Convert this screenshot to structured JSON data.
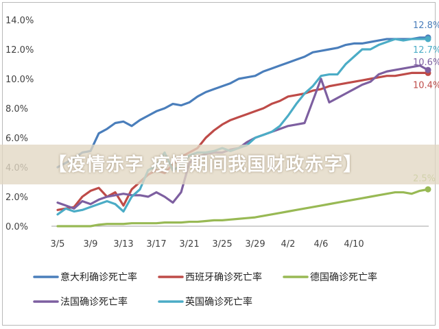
{
  "banner": {
    "text": "【疫情赤字 疫情期间我国财政赤字】"
  },
  "chart_data": {
    "type": "line",
    "ylim": [
      0,
      14
    ],
    "y_ticks": [
      "0.0%",
      "2.0%",
      "4.0%",
      "6.0%",
      "8.0%",
      "10.0%",
      "12.0%",
      "14.0%"
    ],
    "x_ticks": [
      "3/5",
      "3/9",
      "3/13",
      "3/17",
      "3/21",
      "3/25",
      "3/29",
      "4/2",
      "4/6",
      "4/10"
    ],
    "legend_position": "bottom",
    "series": [
      {
        "name": "意大利确诊死亡率",
        "color": "#4a7ebb",
        "end_label": "12.8%",
        "values": [
          4.0,
          4.3,
          4.6,
          5.0,
          5.1,
          6.3,
          6.6,
          7.0,
          7.1,
          6.8,
          7.2,
          7.5,
          7.8,
          8.0,
          8.3,
          8.2,
          8.4,
          8.8,
          9.1,
          9.3,
          9.5,
          9.7,
          10.0,
          10.1,
          10.2,
          10.5,
          10.7,
          10.9,
          11.1,
          11.3,
          11.5,
          11.8,
          11.9,
          12.0,
          12.1,
          12.3,
          12.4,
          12.4,
          12.5,
          12.6,
          12.7,
          12.7,
          12.7,
          12.7,
          12.8,
          12.8
        ]
      },
      {
        "name": "西班牙确诊死亡率",
        "color": "#be4b48",
        "end_label": "10.4%",
        "values": [
          1.1,
          1.2,
          1.3,
          2.0,
          2.4,
          2.6,
          2.0,
          2.3,
          1.4,
          2.5,
          3.0,
          3.5,
          3.8,
          3.6,
          4.2,
          4.7,
          5.0,
          5.3,
          6.0,
          6.5,
          6.9,
          7.2,
          7.4,
          7.6,
          7.8,
          8.0,
          8.3,
          8.5,
          8.8,
          8.9,
          9.0,
          9.2,
          9.3,
          9.5,
          9.6,
          9.7,
          9.8,
          9.9,
          10.0,
          10.1,
          10.2,
          10.2,
          10.3,
          10.4,
          10.4,
          10.4
        ]
      },
      {
        "name": "德国确诊死亡率",
        "color": "#98b954",
        "end_label": "2.5%",
        "values": [
          0.0,
          0.0,
          0.0,
          0.0,
          0.0,
          0.1,
          0.15,
          0.15,
          0.15,
          0.2,
          0.2,
          0.2,
          0.2,
          0.25,
          0.25,
          0.25,
          0.3,
          0.3,
          0.35,
          0.4,
          0.4,
          0.45,
          0.5,
          0.55,
          0.6,
          0.7,
          0.8,
          0.9,
          1.0,
          1.1,
          1.2,
          1.3,
          1.4,
          1.5,
          1.6,
          1.7,
          1.8,
          1.9,
          2.0,
          2.1,
          2.2,
          2.3,
          2.3,
          2.2,
          2.4,
          2.5
        ]
      },
      {
        "name": "法国确诊死亡率",
        "color": "#7d5fa0",
        "end_label": "10.6%",
        "values": [
          1.6,
          1.4,
          1.2,
          1.7,
          1.5,
          1.8,
          2.0,
          2.1,
          2.2,
          2.1,
          2.1,
          2.0,
          2.3,
          2.0,
          1.6,
          2.3,
          4.3,
          4.7,
          4.9,
          5.0,
          5.0,
          5.2,
          5.3,
          5.7,
          6.0,
          6.2,
          6.4,
          6.6,
          6.8,
          6.9,
          7.0,
          8.5,
          10.0,
          8.4,
          8.7,
          9.0,
          9.3,
          9.6,
          9.8,
          10.3,
          10.5,
          10.6,
          10.7,
          10.8,
          10.9,
          10.6
        ]
      },
      {
        "name": "英国确诊死亡率",
        "color": "#4bacc6",
        "end_label": "12.7%",
        "values": [
          0.8,
          1.2,
          1.0,
          1.1,
          1.3,
          1.5,
          1.7,
          1.5,
          1.0,
          2.0,
          2.5,
          3.8,
          4.1,
          5.0,
          3.8,
          4.1,
          4.8,
          5.0,
          5.0,
          5.1,
          5.3,
          5.1,
          5.3,
          5.5,
          6.0,
          6.2,
          6.4,
          6.8,
          7.5,
          8.3,
          9.0,
          9.5,
          10.2,
          10.3,
          10.3,
          11.0,
          11.5,
          12.0,
          12.0,
          12.3,
          12.5,
          12.7,
          12.6,
          12.7,
          12.7,
          12.7
        ]
      }
    ]
  }
}
